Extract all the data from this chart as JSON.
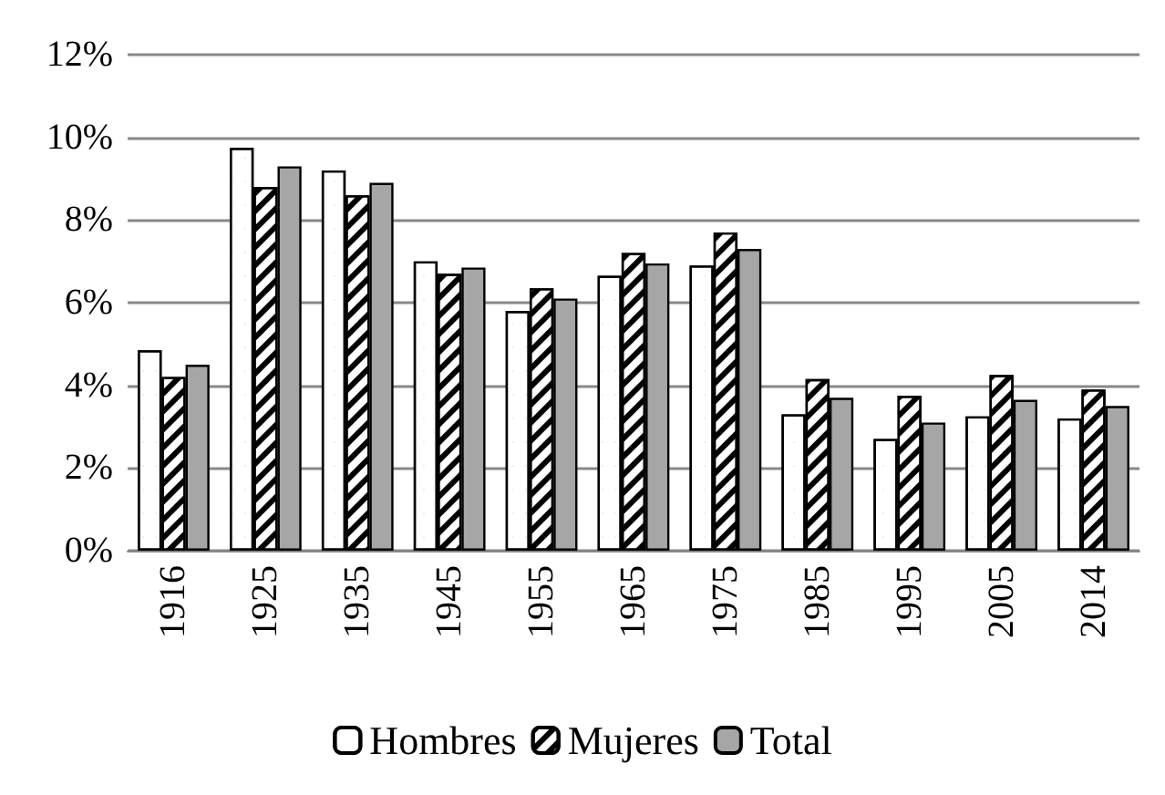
{
  "chart_data": {
    "type": "bar",
    "categories": [
      "1916",
      "1925",
      "1935",
      "1945",
      "1955",
      "1965",
      "1975",
      "1985",
      "1995",
      "2005",
      "2014"
    ],
    "series": [
      {
        "name": "Hombres",
        "color": "#ffffff",
        "values": [
          4.85,
          9.75,
          9.2,
          7.0,
          5.8,
          6.65,
          6.9,
          3.3,
          2.7,
          3.25,
          3.2
        ]
      },
      {
        "name": "Mujeres",
        "color": "#000000",
        "values": [
          4.2,
          8.8,
          8.6,
          6.7,
          6.35,
          7.2,
          7.7,
          4.15,
          3.75,
          4.25,
          3.9
        ]
      },
      {
        "name": "Total",
        "color": "#a6a6a6",
        "values": [
          4.5,
          9.3,
          8.9,
          6.85,
          6.1,
          6.95,
          7.3,
          3.7,
          3.1,
          3.65,
          3.5
        ]
      }
    ],
    "ylim": [
      0,
      12
    ],
    "yticks": [
      {
        "value": 0,
        "label": "0%"
      },
      {
        "value": 2,
        "label": "2%"
      },
      {
        "value": 4,
        "label": "4%"
      },
      {
        "value": 6,
        "label": "6%"
      },
      {
        "value": 8,
        "label": "8%"
      },
      {
        "value": 10,
        "label": "10%"
      },
      {
        "value": 12,
        "label": "12%"
      }
    ],
    "grid": "y",
    "legend": "bottom"
  }
}
